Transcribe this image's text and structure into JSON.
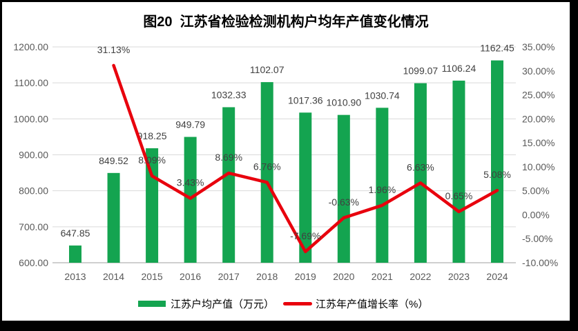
{
  "title": "图20  江苏省检验检测机构户均年产值变化情况",
  "chart_data": {
    "type": "bar+line",
    "categories": [
      "2013",
      "2014",
      "2015",
      "2016",
      "2017",
      "2018",
      "2019",
      "2020",
      "2021",
      "2022",
      "2023",
      "2024"
    ],
    "series": [
      {
        "name": "江苏户均产值（万元）",
        "type": "bar",
        "axis": "left",
        "color": "#14A450",
        "values": [
          647.85,
          849.52,
          918.25,
          949.79,
          1032.33,
          1102.07,
          1017.36,
          1010.9,
          1030.74,
          1099.07,
          1106.24,
          1162.45
        ],
        "labels": [
          "647.85",
          "849.52",
          "918.25",
          "949.79",
          "1032.33",
          "1102.07",
          "1017.36",
          "1010.90",
          "1030.74",
          "1099.07",
          "1106.24",
          "1162.45"
        ]
      },
      {
        "name": "江苏年产值增长率（%）",
        "type": "line",
        "axis": "right",
        "color": "#E8000D",
        "values": [
          null,
          31.13,
          8.09,
          3.43,
          8.69,
          6.76,
          -7.69,
          -0.63,
          1.96,
          6.63,
          0.65,
          5.08
        ],
        "labels": [
          "",
          "31.13%",
          "8.09%",
          "3.43%",
          "8.69%",
          "6.76%",
          "-7.69%",
          "-0.63%",
          "1.96%",
          "6.63%",
          "0.65%",
          "5.08%"
        ]
      }
    ],
    "left_axis": {
      "min": 600,
      "max": 1200,
      "step": 100,
      "labels": [
        "600.00",
        "700.00",
        "800.00",
        "900.00",
        "1000.00",
        "1100.00",
        "1200.00"
      ]
    },
    "right_axis": {
      "min": -10,
      "max": 35,
      "step": 5,
      "labels": [
        "-10.00%",
        "-5.00%",
        "0.00%",
        "5.00%",
        "10.00%",
        "15.00%",
        "20.00%",
        "25.00%",
        "30.00%",
        "35.00%"
      ]
    },
    "grid": true,
    "legend_position": "bottom"
  },
  "colors": {
    "bar": "#14A450",
    "line": "#E8000D",
    "grid": "#D9D9D9",
    "axis_line": "#BFBFBF",
    "tick_text": "#595959",
    "data_label": "#404040",
    "title_text": "#000000",
    "frame": "#000000",
    "background": "#FFFFFF"
  }
}
